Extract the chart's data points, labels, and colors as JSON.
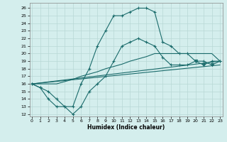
{
  "xlabel": "Humidex (Indice chaleur)",
  "xlim": [
    -0.3,
    23.3
  ],
  "ylim": [
    11.7,
    26.7
  ],
  "yticks": [
    12,
    13,
    14,
    15,
    16,
    17,
    18,
    19,
    20,
    21,
    22,
    23,
    24,
    25,
    26
  ],
  "xticks": [
    0,
    1,
    2,
    3,
    4,
    5,
    6,
    7,
    8,
    9,
    10,
    11,
    12,
    13,
    14,
    15,
    16,
    17,
    18,
    19,
    20,
    21,
    22,
    23
  ],
  "bg_color": "#d4eeed",
  "line_color": "#1a6b6b",
  "grid_color": "#b8d8d6",
  "line1_x": [
    0,
    1,
    2,
    3,
    4,
    5,
    6,
    7,
    8,
    9,
    10,
    11,
    12,
    13,
    14,
    15,
    16,
    17,
    18,
    19,
    20,
    21,
    22,
    23
  ],
  "line1_y": [
    16.0,
    15.5,
    15.0,
    14.0,
    13.0,
    13.0,
    16.0,
    18.0,
    21.0,
    23.0,
    25.0,
    25.0,
    25.5,
    26.0,
    26.0,
    25.5,
    21.5,
    21.0,
    20.0,
    20.0,
    19.0,
    18.5,
    19.0,
    19.0
  ],
  "line2_x": [
    0,
    1,
    2,
    3,
    4,
    5,
    6,
    7,
    8,
    9,
    10,
    11,
    12,
    13,
    14,
    15,
    16,
    17,
    18,
    19,
    20,
    21,
    22,
    23
  ],
  "line2_y": [
    16.0,
    15.5,
    14.0,
    13.0,
    13.0,
    12.0,
    13.0,
    15.0,
    16.0,
    17.0,
    19.0,
    21.0,
    21.5,
    22.0,
    21.5,
    21.0,
    19.5,
    18.5,
    18.5,
    18.5,
    19.0,
    19.0,
    18.5,
    19.0
  ],
  "line3_x": [
    0,
    1,
    2,
    3,
    4,
    5,
    6,
    7,
    8,
    9,
    10,
    11,
    12,
    13,
    14,
    15,
    16,
    17,
    18,
    19,
    20,
    21,
    22,
    23
  ],
  "line3_y": [
    16.0,
    16.0,
    16.0,
    16.0,
    16.3,
    16.6,
    17.0,
    17.3,
    17.6,
    18.0,
    18.3,
    18.6,
    19.0,
    19.3,
    19.6,
    20.0,
    20.0,
    20.0,
    20.0,
    20.0,
    20.0,
    20.0,
    20.0,
    19.0
  ],
  "line4_x": [
    0,
    23
  ],
  "line4_y": [
    16.0,
    18.5
  ],
  "line5_x": [
    0,
    23
  ],
  "line5_y": [
    16.0,
    19.0
  ]
}
